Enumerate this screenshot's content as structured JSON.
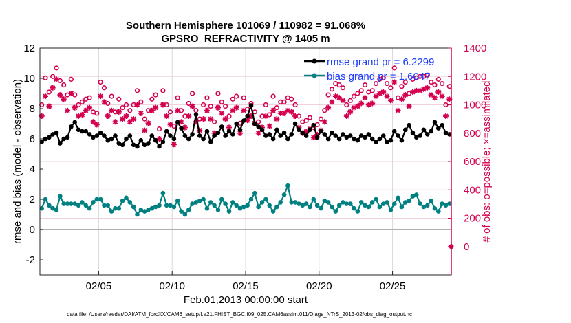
{
  "chart_data": {
    "type": "line",
    "title": [
      "Southern Hemisphere 101069 / 110982 = 91.068%",
      "GPSRO_REFRACTIVITY @ 1405 m"
    ],
    "xlabel": "Feb.01,2013 00:00:00 start",
    "ylabel": "rmse and bias (model - observation)",
    "ylabel_right": "# of obs: o=possible; ×=assimilated",
    "footer": "data file: /Users/raeder/DAI/ATM_forcXX/CAM6_setup/f.e21.FHIST_BGC.f09_025.CAM6assim.011/Diags_NTrS_2013-02/obs_diag_output.nc",
    "x_days_range": [
      0,
      28
    ],
    "points_per_day": 4,
    "x_ticks": [
      {
        "day": 4,
        "label": "02/05"
      },
      {
        "day": 9,
        "label": "02/10"
      },
      {
        "day": 14,
        "label": "02/15"
      },
      {
        "day": 19,
        "label": "02/20"
      },
      {
        "day": 24,
        "label": "02/25"
      }
    ],
    "ylim": [
      -3,
      12
    ],
    "y_ticks": [
      -2,
      0,
      2,
      4,
      6,
      8,
      10,
      12
    ],
    "ylim_right": [
      -200,
      1400
    ],
    "y_ticks_right": [
      0,
      200,
      400,
      600,
      800,
      1000,
      1200,
      1400
    ],
    "legend": {
      "position": "top-right",
      "entries": [
        "rmse grand pr = 6.2299",
        "bias grand pr = 1.6047"
      ]
    },
    "colors": {
      "rmse": "#000000",
      "bias": "#008080",
      "obs": "#d4004f",
      "legend_text": "#1a3cff",
      "grid": "#d9d9d9",
      "zero_line": "#b0b0b0"
    },
    "series": [
      {
        "name": "rmse",
        "axis": "left",
        "values": [
          5.8,
          6.0,
          6.1,
          6.3,
          6.4,
          5.7,
          6.0,
          6.1,
          6.8,
          7.1,
          6.6,
          6.5,
          6.5,
          6.3,
          6.1,
          6.2,
          6.4,
          6.2,
          5.9,
          6.0,
          6.2,
          5.7,
          5.6,
          6.0,
          6.2,
          5.6,
          5.5,
          5.9,
          5.6,
          5.7,
          6.2,
          5.9,
          5.5,
          5.8,
          6.5,
          6.2,
          6.0,
          7.1,
          6.7,
          6.2,
          6.0,
          6.3,
          7.6,
          6.2,
          6.0,
          6.5,
          5.8,
          6.2,
          6.4,
          6.8,
          6.2,
          6.5,
          6.3,
          7.0,
          6.6,
          7.2,
          7.5,
          8.2,
          7.0,
          6.8,
          6.6,
          6.2,
          6.3,
          6.0,
          6.6,
          6.2,
          6.4,
          6.0,
          6.3,
          7.0,
          6.6,
          6.4,
          6.2,
          6.6,
          6.9,
          6.1,
          6.5,
          6.3,
          6.0,
          6.4,
          6.2,
          6.0,
          6.3,
          6.1,
          6.2,
          6.0,
          5.9,
          6.2,
          6.1,
          6.3,
          6.0,
          5.8,
          6.0,
          6.2,
          5.8,
          5.9,
          6.5,
          6.2,
          5.9,
          6.6,
          6.9,
          6.4,
          6.1,
          6.2,
          6.6,
          6.3,
          6.5,
          7.1,
          6.7,
          6.9,
          6.4,
          6.3
        ]
      },
      {
        "name": "bias",
        "axis": "left",
        "values": [
          1.4,
          2.0,
          1.6,
          1.4,
          1.3,
          2.2,
          1.7,
          1.7,
          1.7,
          1.7,
          1.6,
          1.8,
          1.6,
          1.4,
          1.8,
          2.0,
          2.0,
          1.6,
          1.6,
          1.2,
          1.4,
          1.4,
          1.9,
          2.1,
          1.8,
          1.5,
          1.0,
          1.3,
          1.2,
          1.3,
          1.4,
          1.5,
          1.6,
          2.4,
          1.6,
          1.6,
          1.5,
          1.9,
          1.2,
          1.0,
          1.3,
          1.7,
          1.8,
          1.9,
          2.0,
          1.4,
          1.8,
          1.6,
          1.3,
          2.0,
          1.7,
          1.2,
          1.8,
          1.6,
          1.4,
          1.5,
          1.6,
          2.0,
          2.4,
          1.5,
          1.8,
          2.0,
          1.6,
          1.2,
          1.5,
          1.8,
          2.3,
          2.9,
          1.8,
          1.8,
          1.7,
          1.6,
          1.7,
          1.5,
          2.0,
          1.6,
          1.4,
          1.9,
          1.8,
          1.5,
          1.2,
          1.6,
          1.8,
          1.7,
          1.7,
          1.4,
          1.2,
          1.8,
          1.6,
          1.5,
          1.8,
          2.0,
          1.5,
          1.7,
          1.8,
          1.3,
          1.7,
          2.1,
          1.5,
          1.8,
          1.9,
          2.2,
          2.3,
          1.7,
          1.5,
          1.6,
          1.9,
          1.4,
          1.2,
          1.7,
          1.6,
          1.7
        ]
      },
      {
        "name": "possible",
        "axis": "right",
        "marker": "o",
        "values": [
          1000,
          1190,
          1090,
          1200,
          1260,
          1170,
          1140,
          1070,
          1180,
          1070,
          1000,
          1020,
          1040,
          1050,
          950,
          940,
          1160,
          1120,
          1010,
          1060,
          950,
          1040,
          980,
          1000,
          960,
          1000,
          1100,
          1020,
          900,
          960,
          1040,
          1070,
          830,
          1100,
          1000,
          950,
          850,
          1050,
          960,
          920,
          1010,
          1080,
          960,
          900,
          1000,
          1050,
          990,
          880,
          1080,
          1020,
          990,
          920,
          1040,
          1060,
          870,
          1050,
          970,
          1010,
          950,
          880,
          920,
          1000,
          930,
          1060,
          980,
          1020,
          1020,
          1050,
          1040,
          1000,
          920,
          880,
          890,
          910,
          840,
          860,
          900,
          960,
          1070,
          1110,
          1150,
          1140,
          1120,
          1000,
          1030,
          1060,
          1080,
          1100,
          1140,
          1090,
          1100,
          1150,
          1180,
          1190,
          1150,
          1120,
          1260,
          1050,
          1130,
          1160,
          1080,
          1180,
          1190,
          1200,
          1200,
          1210,
          1160,
          1140,
          1180,
          1150,
          1000,
          1130
        ]
      },
      {
        "name": "assimilated",
        "axis": "right",
        "marker": "*",
        "values": [
          920,
          1060,
          990,
          1120,
          1180,
          1070,
          1040,
          960,
          1080,
          980,
          920,
          930,
          960,
          980,
          880,
          860,
          1060,
          1020,
          920,
          960,
          880,
          950,
          900,
          920,
          880,
          900,
          1000,
          940,
          820,
          870,
          960,
          980,
          760,
          1000,
          920,
          860,
          720,
          960,
          880,
          840,
          920,
          990,
          880,
          820,
          900,
          960,
          900,
          800,
          980,
          940,
          900,
          840,
          960,
          980,
          800,
          960,
          890,
          920,
          870,
          800,
          840,
          920,
          850,
          960,
          900,
          940,
          940,
          960,
          950,
          920,
          840,
          800,
          810,
          830,
          770,
          790,
          820,
          880,
          980,
          1020,
          1060,
          1050,
          1030,
          920,
          950,
          980,
          990,
          1010,
          1050,
          1000,
          1010,
          1060,
          1080,
          1090,
          1060,
          1030,
          1160,
          960,
          1040,
          1070,
          990,
          1090,
          1100,
          1100,
          1110,
          1120,
          1070,
          1050,
          1090,
          1060,
          920,
          1040
        ]
      }
    ]
  }
}
